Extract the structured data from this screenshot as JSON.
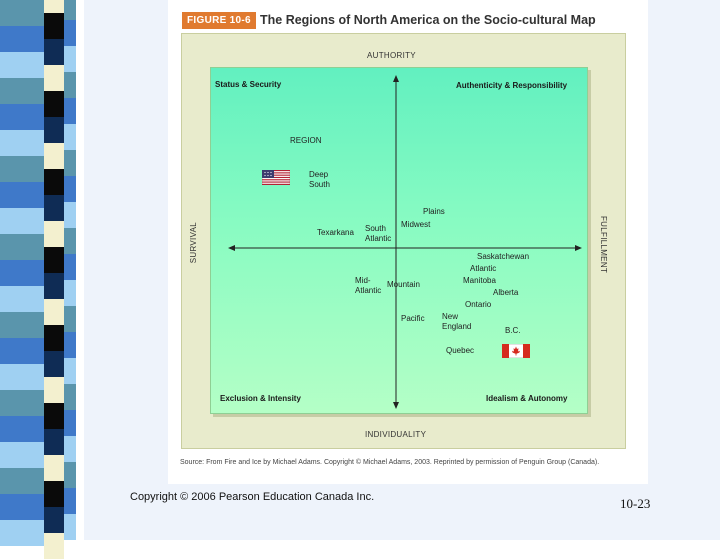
{
  "figure": {
    "number": "FIGURE 10-6",
    "title": "The Regions of North America on the Socio-cultural Map",
    "axes": {
      "top": "AUTHORITY",
      "bottom": "INDIVIDUALITY",
      "left": "SURVIVAL",
      "right": "FULFILLMENT"
    },
    "quadrants": {
      "top_left": "Status & Security",
      "top_right": "Authenticity & Responsibility",
      "bottom_left": "Exclusion & Intensity",
      "bottom_right": "Idealism & Autonomy"
    },
    "legend_heading": "REGION",
    "regions": [
      {
        "name": "Deep\nSouth"
      },
      {
        "name": "Plains"
      },
      {
        "name": "Midwest"
      },
      {
        "name": "Texarkana"
      },
      {
        "name": "South\nAtlantic"
      },
      {
        "name": "Saskatchewan"
      },
      {
        "name": "Atlantic"
      },
      {
        "name": "Manitoba"
      },
      {
        "name": "Alberta"
      },
      {
        "name": "Mid-\nAtlantic"
      },
      {
        "name": "Mountain"
      },
      {
        "name": "Ontario"
      },
      {
        "name": "Pacific"
      },
      {
        "name": "New\nEngland"
      },
      {
        "name": "B.C."
      },
      {
        "name": "Quebec"
      }
    ],
    "flags": {
      "us": "us-flag-icon",
      "canada": "canada-flag-icon"
    },
    "source": "Source: From Fire and Ice by Michael Adams. Copyright © Michael Adams, 2003. Reprinted by permission of Penguin Group (Canada)."
  },
  "footer": {
    "copyright": "Copyright © 2006 Pearson Education Canada Inc.",
    "slide_number": "10-23"
  },
  "colors": {
    "figure_tag": "#e07a2f",
    "map_green": "#7df7c2",
    "outer_box": "#e8ebcc",
    "stripe_dark": "#0f2c55",
    "stripe_blue": "#3f79c9",
    "stripe_light": "#9fd0f2",
    "stripe_cream": "#f3f0cf",
    "stripe_teal": "#5a95ac",
    "stripe_black": "#0a0a0a"
  }
}
